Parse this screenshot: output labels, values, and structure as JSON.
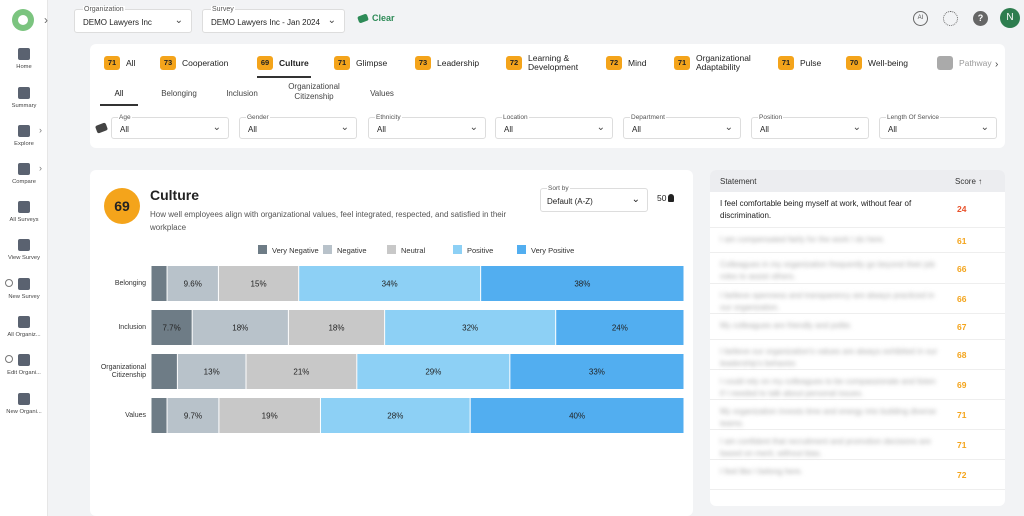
{
  "sidebar": {
    "items": [
      {
        "label": "Home",
        "icon": "home-icon"
      },
      {
        "label": "Summary",
        "icon": "clipboard-icon"
      },
      {
        "label": "Explore",
        "icon": "pie-icon"
      },
      {
        "label": "Compare",
        "icon": "compare-icon"
      },
      {
        "label": "All Surveys",
        "icon": "surveys-icon"
      },
      {
        "label": "View Survey",
        "icon": "view-survey-icon"
      },
      {
        "label": "New Survey",
        "icon": "new-survey-icon"
      },
      {
        "label": "All Organiz...",
        "icon": "organizations-icon"
      },
      {
        "label": "Edit Organi...",
        "icon": "edit-org-icon"
      },
      {
        "label": "New Organi...",
        "icon": "new-org-icon"
      }
    ]
  },
  "topbar": {
    "organization_label": "Organization",
    "organization_value": "DEMO Lawyers Inc",
    "survey_label": "Survey",
    "survey_value": "DEMO Lawyers Inc - Jan 2024",
    "clear_label": "Clear",
    "ai_label": "AI",
    "avatar_initial": "N"
  },
  "tabs": [
    {
      "score": "71",
      "label": "All"
    },
    {
      "score": "73",
      "label": "Cooperation"
    },
    {
      "score": "69",
      "label": "Culture"
    },
    {
      "score": "71",
      "label": "Glimpse"
    },
    {
      "score": "73",
      "label": "Leadership"
    },
    {
      "score": "72",
      "label": "Learning &\nDevelopment"
    },
    {
      "score": "72",
      "label": "Mind"
    },
    {
      "score": "71",
      "label": "Organizational\nAdaptability"
    },
    {
      "score": "71",
      "label": "Pulse"
    },
    {
      "score": "70",
      "label": "Well-being"
    },
    {
      "score": "",
      "label": "Pathway"
    }
  ],
  "subtabs": [
    "All",
    "Belonging",
    "Inclusion",
    "Organizational\nCitizenship",
    "Values"
  ],
  "filters": [
    {
      "label": "Age",
      "value": "All"
    },
    {
      "label": "Gender",
      "value": "All"
    },
    {
      "label": "Ethnicity",
      "value": "All"
    },
    {
      "label": "Location",
      "value": "All"
    },
    {
      "label": "Department",
      "value": "All"
    },
    {
      "label": "Position",
      "value": "All"
    },
    {
      "label": "Length Of Service",
      "value": "All"
    }
  ],
  "culture": {
    "score": "69",
    "title": "Culture",
    "description": "How well employees align with organizational values, feel integrated, respected, and satisfied in their workplace",
    "sort_label": "Sort by",
    "sort_value": "Default (A-Z)",
    "respondents": "50"
  },
  "chart_data": {
    "type": "bar",
    "stacked": true,
    "orientation": "horizontal",
    "normalized": true,
    "categories": [
      "Belonging",
      "Inclusion",
      "Organizational Citizenship",
      "Values"
    ],
    "series": [
      {
        "name": "Very Negative",
        "color": "#6e7c86",
        "values": [
          3.0,
          7.7,
          5.0,
          3.0
        ],
        "labels": [
          "",
          "7.7%",
          "",
          ""
        ]
      },
      {
        "name": "Negative",
        "color": "#b8c2ca",
        "values": [
          9.6,
          18,
          13,
          9.7
        ],
        "labels": [
          "9.6%",
          "18%",
          "13%",
          "9.7%"
        ]
      },
      {
        "name": "Neutral",
        "color": "#c8c8c8",
        "values": [
          15,
          18,
          21,
          19
        ],
        "labels": [
          "15%",
          "18%",
          "21%",
          "19%"
        ]
      },
      {
        "name": "Positive",
        "color": "#8dd0f5",
        "values": [
          34,
          32,
          29,
          28
        ],
        "labels": [
          "34%",
          "32%",
          "29%",
          "28%"
        ]
      },
      {
        "name": "Very Positive",
        "color": "#52aef0",
        "values": [
          38,
          24,
          33,
          40
        ],
        "labels": [
          "38%",
          "24%",
          "33%",
          "40%"
        ]
      }
    ],
    "legend_position": "top"
  },
  "statements": {
    "header_statement": "Statement",
    "header_score": "Score",
    "rows": [
      {
        "text": "I feel comfortable being myself at work, without fear of discrimination.",
        "score": "24",
        "color": "#e8522b"
      },
      {
        "text": "I am compensated fairly for the work I do here.",
        "score": "61",
        "color": "#f4a41b"
      },
      {
        "text": "Colleagues in my organization frequently go beyond their job roles to assist others.",
        "score": "66",
        "color": "#f4a41b"
      },
      {
        "text": "I believe openness and transparency are always practiced in our organization.",
        "score": "66",
        "color": "#f4a41b"
      },
      {
        "text": "My colleagues are friendly and polite.",
        "score": "67",
        "color": "#f4a41b"
      },
      {
        "text": "I believe our organization's values are always exhibited in our leadership's behavior.",
        "score": "68",
        "color": "#f4a41b"
      },
      {
        "text": "I could rely on my colleagues to be compassionate and listen if I needed to talk about personal issues.",
        "score": "69",
        "color": "#f4a41b"
      },
      {
        "text": "My organization invests time and energy into building diverse teams.",
        "score": "71",
        "color": "#f4a41b"
      },
      {
        "text": "I am confident that recruitment and promotion decisions are based on merit, without bias.",
        "score": "71",
        "color": "#f4a41b"
      },
      {
        "text": "I feel like I belong here.",
        "score": "72",
        "color": "#f4a41b"
      }
    ]
  }
}
